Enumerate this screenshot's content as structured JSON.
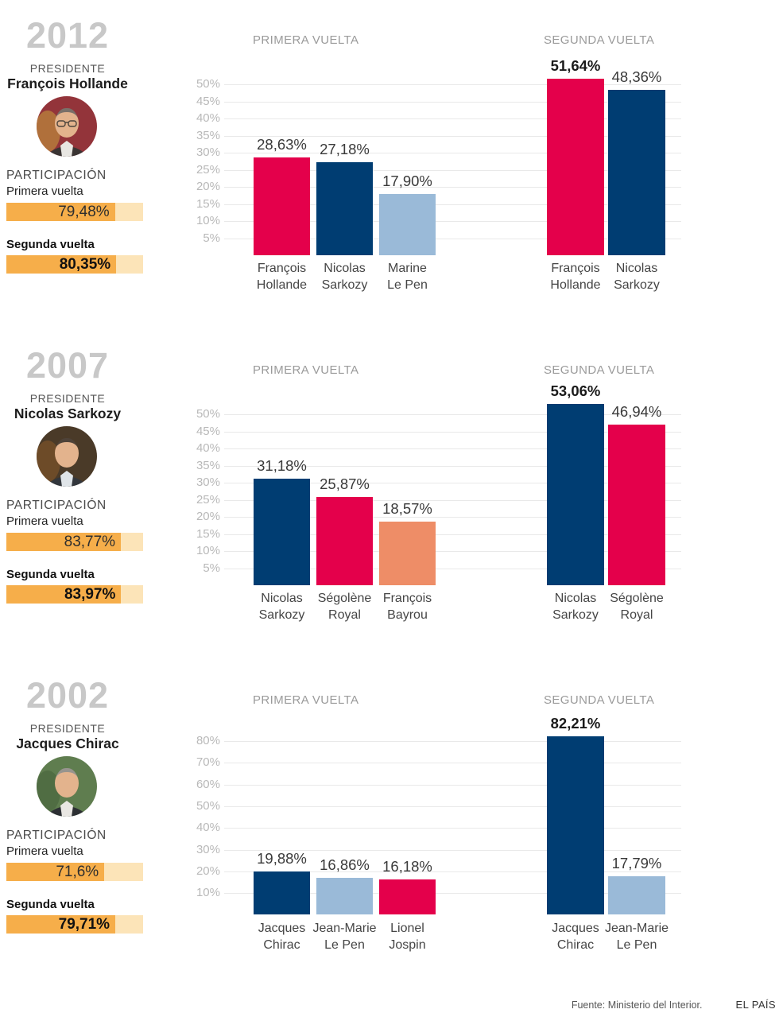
{
  "footer": {
    "source": "Fuente: Ministerio del Interior.",
    "brand": "EL PAÍS"
  },
  "colors": {
    "red": "#e4004b",
    "navy": "#003d72",
    "light_blue": "#9abad8",
    "salmon": "#ee8d67",
    "participation_fill": "#f6ae4a",
    "participation_track": "#fce4b8",
    "year_gray": "#c8c8c8"
  },
  "sections": [
    {
      "year": "2012",
      "president_label": "PRESIDENTE",
      "president_name": "François Hollande",
      "participation_title": "PARTICIPACIÓN",
      "participation": [
        {
          "label": "Primera vuelta",
          "display": "79,48%",
          "value": 79.48,
          "bold": false
        },
        {
          "label": "Segunda vuelta",
          "display": "80,35%",
          "value": 80.35,
          "bold": true
        }
      ]
    },
    {
      "year": "2007",
      "president_label": "PRESIDENTE",
      "president_name": "Nicolas Sarkozy",
      "participation_title": "PARTICIPACIÓN",
      "participation": [
        {
          "label": "Primera vuelta",
          "display": "83,77%",
          "value": 83.77,
          "bold": false
        },
        {
          "label": "Segunda vuelta",
          "display": "83,97%",
          "value": 83.97,
          "bold": true
        }
      ]
    },
    {
      "year": "2002",
      "president_label": "PRESIDENTE",
      "president_name": "Jacques Chirac",
      "participation_title": "PARTICIPACIÓN",
      "participation": [
        {
          "label": "Primera vuelta",
          "display": "71,6%",
          "value": 71.6,
          "bold": false
        },
        {
          "label": "Segunda vuelta",
          "display": "79,71%",
          "value": 79.71,
          "bold": true
        }
      ]
    }
  ],
  "chart_data": [
    {
      "type": "bar",
      "year": "2012",
      "title": "PRIMERA VUELTA",
      "unit": "%",
      "ylim": [
        0,
        52
      ],
      "yticks": [
        5,
        10,
        15,
        20,
        25,
        30,
        35,
        40,
        45,
        50
      ],
      "ytick_labels": [
        "5%",
        "10%",
        "15%",
        "20%",
        "25%",
        "30%",
        "35%",
        "40%",
        "45%",
        "50%"
      ],
      "bars": [
        {
          "name": "François\nHollande",
          "value": 28.63,
          "label": "28,63%",
          "color": "#e4004b",
          "bold": false
        },
        {
          "name": "Nicolas\nSarkozy",
          "value": 27.18,
          "label": "27,18%",
          "color": "#003d72",
          "bold": false
        },
        {
          "name": "Marine\nLe Pen",
          "value": 17.9,
          "label": "17,90%",
          "color": "#9abad8",
          "bold": false
        }
      ]
    },
    {
      "type": "bar",
      "year": "2012",
      "title": "SEGUNDA VUELTA",
      "unit": "%",
      "ylim": [
        0,
        52
      ],
      "yticks": [
        5,
        10,
        15,
        20,
        25,
        30,
        35,
        40,
        45,
        50
      ],
      "ytick_labels": [
        "5%",
        "10%",
        "15%",
        "20%",
        "25%",
        "30%",
        "35%",
        "40%",
        "45%",
        "50%"
      ],
      "bars": [
        {
          "name": "François\nHollande",
          "value": 51.64,
          "label": "51,64%",
          "color": "#e4004b",
          "bold": true
        },
        {
          "name": "Nicolas\nSarkozy",
          "value": 48.36,
          "label": "48,36%",
          "color": "#003d72",
          "bold": false
        }
      ]
    },
    {
      "type": "bar",
      "year": "2007",
      "title": "PRIMERA VUELTA",
      "unit": "%",
      "ylim": [
        0,
        52
      ],
      "yticks": [
        5,
        10,
        15,
        20,
        25,
        30,
        35,
        40,
        45,
        50
      ],
      "ytick_labels": [
        "5%",
        "10%",
        "15%",
        "20%",
        "25%",
        "30%",
        "35%",
        "40%",
        "45%",
        "50%"
      ],
      "bars": [
        {
          "name": "Nicolas\nSarkozy",
          "value": 31.18,
          "label": "31,18%",
          "color": "#003d72",
          "bold": false
        },
        {
          "name": "Ségolène\nRoyal",
          "value": 25.87,
          "label": "25,87%",
          "color": "#e4004b",
          "bold": false
        },
        {
          "name": "François\nBayrou",
          "value": 18.57,
          "label": "18,57%",
          "color": "#ee8d67",
          "bold": false
        }
      ]
    },
    {
      "type": "bar",
      "year": "2007",
      "title": "SEGUNDA VUELTA",
      "unit": "%",
      "ylim": [
        0,
        52
      ],
      "yticks": [
        5,
        10,
        15,
        20,
        25,
        30,
        35,
        40,
        45,
        50
      ],
      "ytick_labels": [
        "5%",
        "10%",
        "15%",
        "20%",
        "25%",
        "30%",
        "35%",
        "40%",
        "45%",
        "50%"
      ],
      "bars": [
        {
          "name": "Nicolas\nSarkozy",
          "value": 53.06,
          "label": "53,06%",
          "color": "#003d72",
          "bold": true
        },
        {
          "name": "Ségolène\nRoyal",
          "value": 46.94,
          "label": "46,94%",
          "color": "#e4004b",
          "bold": false
        }
      ]
    },
    {
      "type": "bar",
      "year": "2002",
      "title": "PRIMERA VUELTA",
      "unit": "%",
      "ylim": [
        0,
        85
      ],
      "yticks": [
        10,
        20,
        30,
        40,
        50,
        60,
        70,
        80
      ],
      "ytick_labels": [
        "10%",
        "20%",
        "30%",
        "40%",
        "50%",
        "60%",
        "70%",
        "80%"
      ],
      "bars": [
        {
          "name": "Jacques\nChirac",
          "value": 19.88,
          "label": "19,88%",
          "color": "#003d72",
          "bold": false
        },
        {
          "name": "Jean-Marie\nLe Pen",
          "value": 16.86,
          "label": "16,86%",
          "color": "#9abad8",
          "bold": false
        },
        {
          "name": "Lionel\nJospin",
          "value": 16.18,
          "label": "16,18%",
          "color": "#e4004b",
          "bold": false
        }
      ]
    },
    {
      "type": "bar",
      "year": "2002",
      "title": "SEGUNDA VUELTA",
      "unit": "%",
      "ylim": [
        0,
        85
      ],
      "yticks": [
        10,
        20,
        30,
        40,
        50,
        60,
        70,
        80
      ],
      "ytick_labels": [
        "10%",
        "20%",
        "30%",
        "40%",
        "50%",
        "60%",
        "70%",
        "80%"
      ],
      "bars": [
        {
          "name": "Jacques\nChirac",
          "value": 82.21,
          "label": "82,21%",
          "color": "#003d72",
          "bold": true
        },
        {
          "name": "Jean-Marie\nLe Pen",
          "value": 17.79,
          "label": "17,79%",
          "color": "#9abad8",
          "bold": false
        }
      ]
    }
  ]
}
